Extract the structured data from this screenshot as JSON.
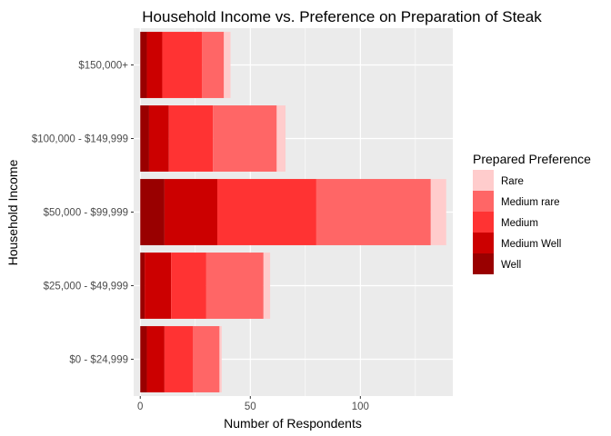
{
  "chart_data": {
    "type": "bar",
    "orientation": "horizontal",
    "stacked": true,
    "title": "Household Income vs. Preference on Preparation of Steak",
    "xlabel": "Number of Respondents",
    "ylabel": "Household Income",
    "xlim": [
      -3,
      142
    ],
    "xticks": [
      0,
      50,
      100
    ],
    "categories": [
      "$0 - $24,999",
      "$25,000 - $49,999",
      "$50,000 - $99,999",
      "$100,000 - $149,999",
      "$150,000+"
    ],
    "grid": true,
    "legend": {
      "title": "Prepared Preference",
      "position": "right"
    },
    "series": [
      {
        "name": "Well",
        "color": "#990000",
        "values": [
          3,
          2,
          11,
          4,
          3
        ]
      },
      {
        "name": "Medium Well",
        "color": "#CC0000",
        "values": [
          8,
          12,
          24,
          9,
          7
        ]
      },
      {
        "name": "Medium",
        "color": "#FF3333",
        "values": [
          13,
          16,
          45,
          20,
          18
        ]
      },
      {
        "name": "Medium rare",
        "color": "#FF6666",
        "values": [
          12,
          26,
          52,
          29,
          10
        ]
      },
      {
        "name": "Rare",
        "color": "#FFCCCC",
        "values": [
          1,
          3,
          7,
          4,
          3
        ]
      }
    ],
    "legend_order": [
      "Rare",
      "Medium rare",
      "Medium",
      "Medium Well",
      "Well"
    ]
  }
}
